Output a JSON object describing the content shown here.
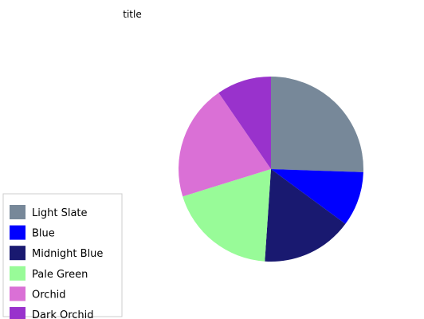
{
  "chart_data": {
    "type": "pie",
    "title": "title",
    "legend_position": "left",
    "slices": [
      {
        "label": "Light Slate",
        "value": 24,
        "color": "#778899"
      },
      {
        "label": "Blue",
        "value": 9,
        "color": "#0000ff"
      },
      {
        "label": "Midnight Blue",
        "value": 15,
        "color": "#191970"
      },
      {
        "label": "Pale Green",
        "value": 18,
        "color": "#98fb98"
      },
      {
        "label": "Orchid",
        "value": 19,
        "color": "#da70d6"
      },
      {
        "label": "Dark Orchid",
        "value": 9,
        "color": "#9932cc"
      }
    ]
  }
}
